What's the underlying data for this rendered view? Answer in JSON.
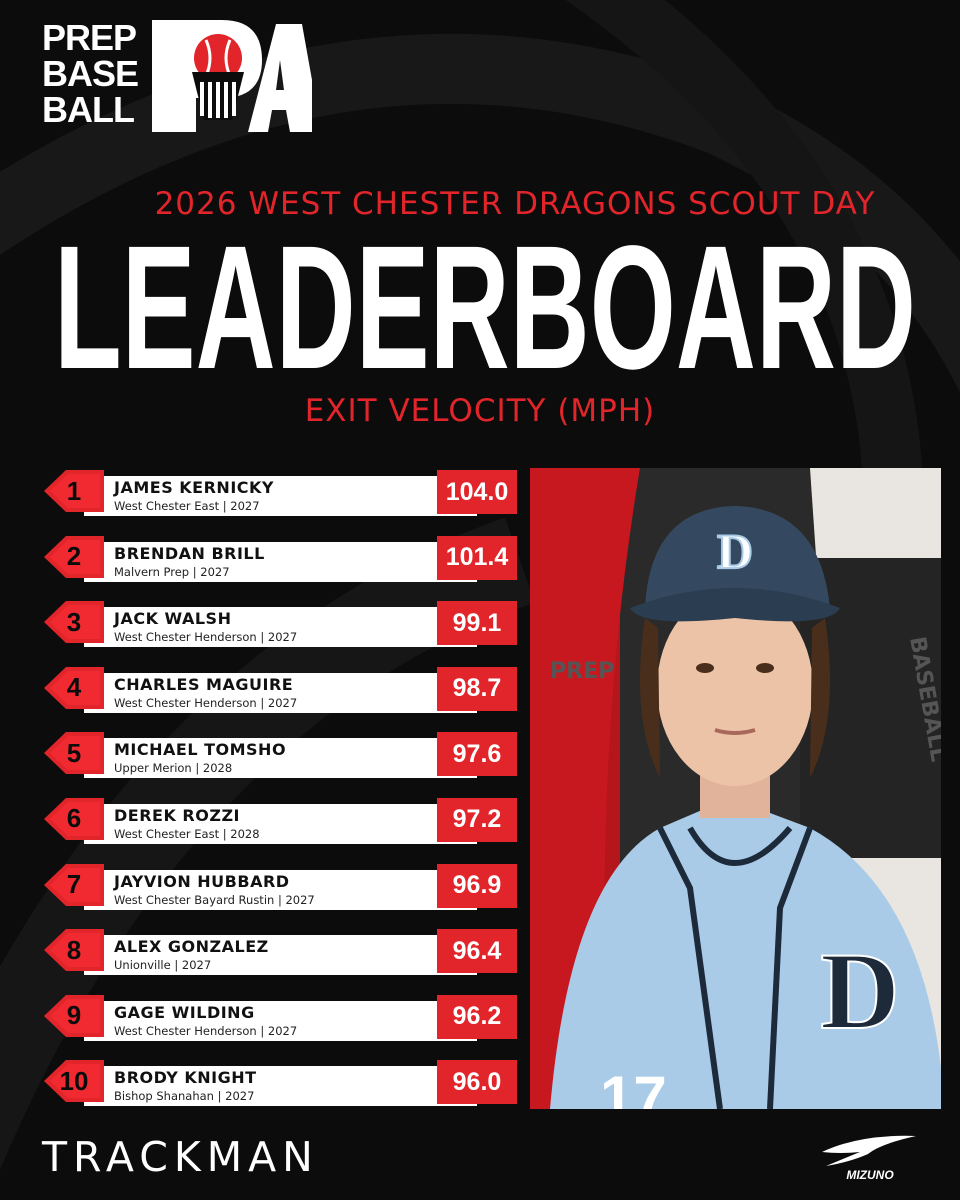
{
  "brand": {
    "logo_lines": [
      "PREP",
      "BASE",
      "BALL"
    ],
    "logo_mark_text": "PA",
    "sponsor_left": "TRACKMAN",
    "sponsor_right": "MIZUNO"
  },
  "header": {
    "subtitle": "2026 WEST CHESTER DRAGONS SCOUT DAY",
    "title": "LEADERBOARD",
    "metric": "EXIT VELOCITY (MPH)"
  },
  "colors": {
    "accent": "#e2252b",
    "background": "#0c0c0c",
    "bar": "#ffffff"
  },
  "leaderboard": [
    {
      "rank": "1",
      "name": "JAMES KERNICKY",
      "info": "West Chester East | 2027",
      "value": "104.0"
    },
    {
      "rank": "2",
      "name": "BRENDAN BRILL",
      "info": "Malvern Prep | 2027",
      "value": "101.4"
    },
    {
      "rank": "3",
      "name": "JACK WALSH",
      "info": "West Chester Henderson | 2027",
      "value": "99.1"
    },
    {
      "rank": "4",
      "name": "CHARLES MAGUIRE",
      "info": "West Chester Henderson | 2027",
      "value": "98.7"
    },
    {
      "rank": "5",
      "name": "MICHAEL TOMSHO",
      "info": "Upper Merion | 2028",
      "value": "97.6"
    },
    {
      "rank": "6",
      "name": "DEREK ROZZI",
      "info": "West Chester East | 2028",
      "value": "97.2"
    },
    {
      "rank": "7",
      "name": "JAYVION HUBBARD",
      "info": "West Chester Bayard Rustin | 2027",
      "value": "96.9"
    },
    {
      "rank": "8",
      "name": "ALEX GONZALEZ",
      "info": "Unionville | 2027",
      "value": "96.4"
    },
    {
      "rank": "9",
      "name": "GAGE WILDING",
      "info": "West Chester Henderson | 2027",
      "value": "96.2"
    },
    {
      "rank": "10",
      "name": "BRODY KNIGHT",
      "info": "Bishop Shanahan | 2027",
      "value": "96.0"
    }
  ],
  "photo": {
    "banner_text": [
      "PREP",
      "BASEBALL"
    ],
    "cap_logo_letter": "D",
    "jersey_logo_letter": "D",
    "jersey_number_partial": "17"
  }
}
